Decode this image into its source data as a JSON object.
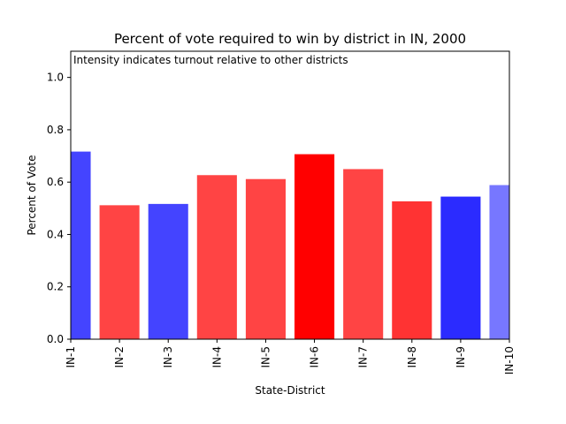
{
  "chart_data": {
    "type": "bar",
    "title": "Percent of vote required to win by district in IN, 2000",
    "annotation": "Intensity indicates turnout relative to other districts",
    "xlabel": "State-District",
    "ylabel": "Percent of Vote",
    "ylim": [
      0,
      1.1
    ],
    "yticks": [
      "0.0",
      "0.2",
      "0.4",
      "0.6",
      "0.8",
      "1.0"
    ],
    "categories": [
      "IN-1",
      "IN-2",
      "IN-3",
      "IN-4",
      "IN-5",
      "IN-6",
      "IN-7",
      "IN-8",
      "IN-9",
      "IN-10"
    ],
    "values": [
      0.715,
      0.51,
      0.515,
      0.625,
      0.61,
      0.705,
      0.648,
      0.525,
      0.543,
      0.587
    ],
    "colors": [
      "#4444ff",
      "#ff4444",
      "#4444ff",
      "#ff4444",
      "#ff4444",
      "#ff0000",
      "#ff4444",
      "#ff3333",
      "#2b2bff",
      "#7777ff"
    ],
    "grid": false
  }
}
